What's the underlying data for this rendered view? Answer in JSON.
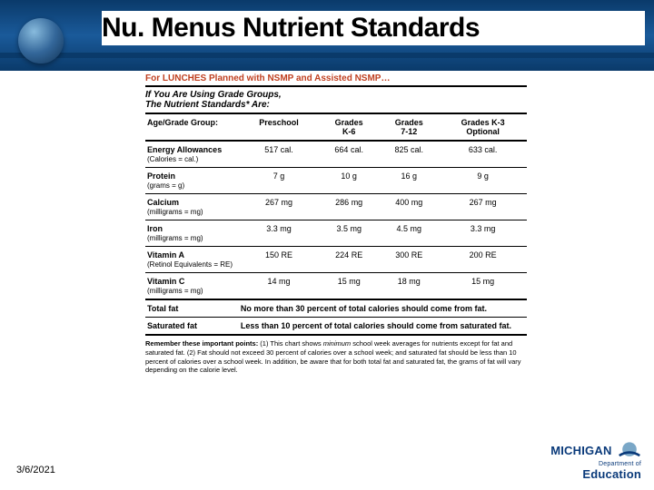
{
  "title": "Nu. Menus Nutrient Standards",
  "date": "3/6/2021",
  "redHead": "For LUNCHES Planned with NSMP and Assisted NSMP…",
  "subHead": "If You Are Using Grade Groups,<br>The Nutrient Standards* Are:",
  "headers": {
    "rowLabel": "Age/Grade Group:",
    "c1": "Preschool",
    "c2": "Grades<br>K-6",
    "c3": "Grades<br>7-12",
    "c4": "Grades K-3<br>Optional"
  },
  "rows": [
    {
      "label": "Energy Allowances",
      "unit": "(Calories = cal.)",
      "c1": "517 cal.",
      "c2": "664 cal.",
      "c3": "825 cal.",
      "c4": "633 cal."
    },
    {
      "label": "Protein",
      "unit": "(grams = g)",
      "c1": "7 g",
      "c2": "10 g",
      "c3": "16 g",
      "c4": "9 g"
    },
    {
      "label": "Calcium",
      "unit": "(milligrams = mg)",
      "c1": "267 mg",
      "c2": "286 mg",
      "c3": "400 mg",
      "c4": "267 mg"
    },
    {
      "label": "Iron",
      "unit": "(milligrams = mg)",
      "c1": "3.3 mg",
      "c2": "3.5 mg",
      "c3": "4.5 mg",
      "c4": "3.3 mg"
    },
    {
      "label": "Vitamin A",
      "unit": "(Retinol Equivalents = RE)",
      "c1": "150 RE",
      "c2": "224 RE",
      "c3": "300 RE",
      "c4": "200 RE"
    },
    {
      "label": "Vitamin C",
      "unit": "(milligrams = mg)",
      "c1": "14 mg",
      "c2": "15 mg",
      "c3": "18 mg",
      "c4": "15 mg",
      "thick": true
    }
  ],
  "spanRows": [
    {
      "label": "Total fat",
      "text": "No more than 30 percent of total calories should come from fat."
    },
    {
      "label": "Saturated fat",
      "text": "Less than 10 percent of total calories should come from saturated fat.",
      "thick": true
    }
  ],
  "footnote": "<b>Remember these important points:</b> (1) This chart shows <i>minimum</i> school week averages for nutrients except for fat and saturated fat. (2) Fat should not exceed 30 percent of calories over a school week; and saturated fat should be less than 10 percent of calories over a school week. In addition, be aware that for both total fat and saturated fat, the grams of fat will vary depending on the calorie level.",
  "logo": {
    "top": "MICHIGAN",
    "sub": "Department of",
    "main": "Education"
  }
}
